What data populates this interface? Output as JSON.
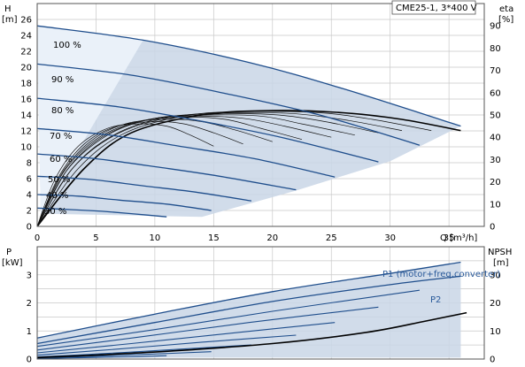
{
  "chart_data": [
    {
      "type": "line",
      "title": "CME25-1, 3*400 V",
      "xlabel": "Q [m³/h]",
      "ylabel_left": "H",
      "ylabel_left_unit": "[m]",
      "ylabel_right": "eta",
      "ylabel_right_unit": "[%]",
      "xlim": [
        0,
        38
      ],
      "ylim_left": [
        0,
        28
      ],
      "ylim_right": [
        0,
        100
      ],
      "grid": true,
      "x_ticks": [
        "0",
        "5",
        "10",
        "15",
        "20",
        "25",
        "30",
        "35"
      ],
      "y_ticks_left": [
        "0",
        "2",
        "4",
        "6",
        "8",
        "10",
        "12",
        "14",
        "16",
        "18",
        "20",
        "22",
        "24",
        "26"
      ],
      "y_ticks_right": [
        "0",
        "10",
        "20",
        "30",
        "40",
        "50",
        "60",
        "70",
        "80",
        "90"
      ],
      "speed_curves": [
        {
          "label": "100 %",
          "q": [
            0,
            9,
            18,
            26,
            36
          ],
          "h": [
            25.2,
            23.4,
            20.6,
            17.3,
            12.6
          ]
        },
        {
          "label": "90 %",
          "q": [
            0,
            8,
            16,
            24,
            32.5
          ],
          "h": [
            20.4,
            19.0,
            16.7,
            14.0,
            10.2
          ]
        },
        {
          "label": "80 %",
          "q": [
            0,
            7,
            14,
            21,
            29
          ],
          "h": [
            16.1,
            15.0,
            13.2,
            11.1,
            8.1
          ]
        },
        {
          "label": "70 %",
          "q": [
            0,
            6,
            12,
            18.5,
            25.3
          ],
          "h": [
            12.3,
            11.5,
            10.1,
            8.5,
            6.2
          ]
        },
        {
          "label": "60 %",
          "q": [
            0,
            5,
            10.5,
            15.5,
            22
          ],
          "h": [
            9.1,
            8.5,
            7.4,
            6.3,
            4.6
          ]
        },
        {
          "label": "50 %",
          "q": [
            0,
            4.5,
            9,
            13.5,
            18.2
          ],
          "h": [
            6.3,
            5.9,
            5.1,
            4.3,
            3.2
          ]
        },
        {
          "label": "40 %",
          "q": [
            0,
            3.5,
            7,
            11,
            14.8
          ],
          "h": [
            4.0,
            3.8,
            3.3,
            2.8,
            2.0
          ]
        },
        {
          "label": "30 %",
          "q": [
            0,
            3,
            5.5,
            8,
            11
          ],
          "h": [
            2.3,
            2.1,
            1.9,
            1.6,
            1.2
          ]
        }
      ],
      "efficiency_curves": [
        {
          "q": [
            0,
            4,
            8,
            14,
            20,
            26,
            31,
            36
          ],
          "eta": [
            0,
            26,
            42,
            50,
            52,
            51,
            48,
            43
          ]
        },
        {
          "q": [
            0,
            3.5,
            7.5,
            13,
            18.5,
            24,
            28.5,
            33.5
          ],
          "eta": [
            0,
            26,
            42,
            50,
            51.5,
            51,
            48,
            43
          ]
        },
        {
          "q": [
            0,
            3,
            7,
            12,
            17,
            22,
            26.5,
            31
          ],
          "eta": [
            0,
            26,
            42,
            49.5,
            51,
            50.5,
            47.5,
            43
          ]
        },
        {
          "q": [
            0,
            3,
            6.5,
            11,
            16,
            20.5,
            24.5,
            29
          ],
          "eta": [
            0,
            26,
            41,
            49,
            50.5,
            50,
            47,
            42
          ]
        },
        {
          "q": [
            0,
            2.5,
            6,
            10,
            14.5,
            19,
            22.5,
            27
          ],
          "eta": [
            0,
            25,
            41,
            48.5,
            50,
            49.5,
            46,
            41
          ]
        },
        {
          "q": [
            0,
            2.5,
            5.5,
            9.5,
            13.5,
            17.5,
            21,
            25
          ],
          "eta": [
            0,
            25,
            40,
            48,
            49.5,
            48.5,
            45,
            40
          ]
        },
        {
          "q": [
            0,
            2.2,
            5,
            8.5,
            12.5,
            16,
            19,
            22.5
          ],
          "eta": [
            0,
            24,
            39,
            47,
            49,
            48,
            44,
            39
          ]
        },
        {
          "q": [
            0,
            2,
            4.5,
            7.5,
            11,
            14,
            17,
            20
          ],
          "eta": [
            0,
            23,
            38,
            46,
            48,
            47,
            43,
            38
          ]
        },
        {
          "q": [
            0,
            1.8,
            4,
            6.8,
            10,
            12.5,
            15,
            17.5
          ],
          "eta": [
            0,
            22,
            37,
            45,
            47,
            46,
            42,
            37
          ]
        },
        {
          "q": [
            0,
            1.5,
            3.5,
            6,
            8.5,
            11,
            13,
            15
          ],
          "eta": [
            0,
            21,
            36,
            44,
            46,
            45,
            41,
            36
          ]
        }
      ],
      "operating_area": [
        [
          0,
          25.2
        ],
        [
          36,
          12.6
        ],
        [
          14,
          1.2
        ],
        [
          10.5,
          1.6
        ],
        [
          0,
          1.6
        ]
      ]
    },
    {
      "type": "line",
      "ylabel_left": "P",
      "ylabel_left_unit": "[kW]",
      "ylabel_right": "NPSH",
      "ylabel_right_unit": "[m]",
      "xlim": [
        0,
        38
      ],
      "ylim_left": [
        0,
        4
      ],
      "ylim_right": [
        0,
        40
      ],
      "grid": true,
      "y_ticks_left": [
        "0",
        "1",
        "2",
        "3"
      ],
      "y_ticks_right": [
        "0",
        "10",
        "20",
        "30"
      ],
      "legend": [
        "P1 (motor+freq.converter)",
        "P2"
      ],
      "p1_curve": {
        "name": "P1 (motor+freq.converter)",
        "q": [
          0,
          10,
          20,
          30,
          36
        ],
        "p": [
          0.75,
          1.6,
          2.4,
          3.05,
          3.45
        ]
      },
      "p2_curve": {
        "name": "P2",
        "q": [
          0,
          10,
          20,
          30,
          36
        ],
        "p": [
          0.55,
          1.3,
          2.05,
          2.65,
          2.95
        ]
      },
      "power_curves": [
        {
          "q": [
            0,
            10,
            20,
            32.5
          ],
          "p": [
            0.45,
            1.05,
            1.7,
            2.45
          ]
        },
        {
          "q": [
            0,
            9,
            18,
            29
          ],
          "p": [
            0.32,
            0.8,
            1.3,
            1.85
          ]
        },
        {
          "q": [
            0,
            8,
            16,
            25.3
          ],
          "p": [
            0.22,
            0.55,
            0.9,
            1.3
          ]
        },
        {
          "q": [
            0,
            7,
            14,
            22
          ],
          "p": [
            0.14,
            0.36,
            0.6,
            0.85
          ]
        },
        {
          "q": [
            0,
            6,
            12,
            18.2
          ],
          "p": [
            0.08,
            0.2,
            0.35,
            0.5
          ]
        },
        {
          "q": [
            0,
            5,
            10,
            14.8
          ],
          "p": [
            0.04,
            0.1,
            0.18,
            0.26
          ]
        },
        {
          "q": [
            0,
            4,
            8,
            11
          ],
          "p": [
            0.02,
            0.05,
            0.08,
            0.12
          ]
        }
      ],
      "npsh_curve": {
        "q": [
          0,
          10,
          20,
          28,
          33,
          36.5
        ],
        "npsh": [
          0.5,
          2.5,
          5.5,
          9.5,
          13.5,
          16.5
        ]
      },
      "operating_area": [
        [
          0,
          0.75
        ],
        [
          36,
          3.45
        ],
        [
          36,
          0.05
        ],
        [
          0,
          0.05
        ]
      ]
    }
  ]
}
